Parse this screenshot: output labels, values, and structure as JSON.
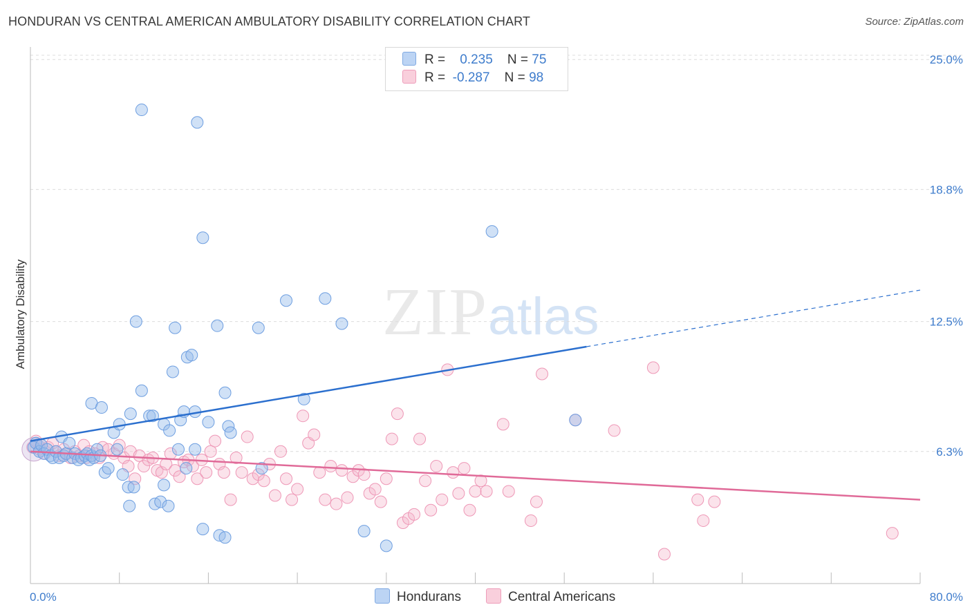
{
  "header": {
    "title": "HONDURAN VS CENTRAL AMERICAN AMBULATORY DISABILITY CORRELATION CHART",
    "source": "Source: ZipAtlas.com"
  },
  "watermark": {
    "zip": "ZIP",
    "atlas": "atlas"
  },
  "legend": {
    "rows": [
      {
        "r_label": "R =",
        "r_value": "0.235",
        "n_label": "N =",
        "n_value": "75",
        "color": "#a9c8f0"
      },
      {
        "r_label": "R =",
        "r_value": "-0.287",
        "n_label": "N =",
        "n_value": "98",
        "color": "#f6b8cc"
      }
    ]
  },
  "bottom_legend": {
    "hondurans": "Hondurans",
    "central_americans": "Central Americans"
  },
  "axes": {
    "y_title": "Ambulatory Disability",
    "x_min_label": "0.0%",
    "x_max_label": "80.0%",
    "y_tick_labels": [
      "6.3%",
      "12.5%",
      "18.8%",
      "25.0%"
    ]
  },
  "chart_data": {
    "type": "scatter",
    "title": "HONDURAN VS CENTRAL AMERICAN AMBULATORY DISABILITY CORRELATION CHART",
    "xlabel": "",
    "ylabel": "Ambulatory Disability",
    "xlim": [
      0,
      80
    ],
    "ylim": [
      0,
      25.6
    ],
    "y_ticks": [
      6.3,
      12.5,
      18.8,
      25.0
    ],
    "grid": true,
    "colors": {
      "hondurans": "#6a9fe0",
      "central_americans": "#f08aad",
      "hondurans_line": "#2b6fce",
      "central_americans_line": "#e06a98"
    },
    "series": [
      {
        "name": "Hondurans",
        "r": 0.235,
        "n": 75,
        "trend": {
          "x0": 0,
          "y0": 6.8,
          "x1": 50,
          "y1": 11.3,
          "x_dash_end": 80,
          "y_dash_end": 14.0
        },
        "points": [
          [
            0.3,
            6.5
          ],
          [
            0.5,
            6.7
          ],
          [
            0.8,
            6.3
          ],
          [
            1.0,
            6.6
          ],
          [
            1.2,
            6.2
          ],
          [
            1.5,
            6.4
          ],
          [
            1.8,
            6.1
          ],
          [
            2.0,
            6.0
          ],
          [
            2.3,
            6.3
          ],
          [
            2.6,
            6.0
          ],
          [
            2.8,
            7.0
          ],
          [
            3.0,
            6.1
          ],
          [
            3.2,
            6.2
          ],
          [
            3.5,
            6.7
          ],
          [
            3.8,
            6.0
          ],
          [
            4.0,
            6.2
          ],
          [
            4.3,
            5.9
          ],
          [
            4.6,
            6.0
          ],
          [
            4.9,
            6.1
          ],
          [
            5.1,
            6.2
          ],
          [
            5.3,
            5.9
          ],
          [
            5.5,
            6.1
          ],
          [
            5.7,
            6.0
          ],
          [
            6.0,
            6.4
          ],
          [
            6.3,
            6.1
          ],
          [
            5.5,
            8.6
          ],
          [
            6.4,
            8.4
          ],
          [
            6.7,
            5.3
          ],
          [
            7.0,
            5.5
          ],
          [
            7.5,
            7.2
          ],
          [
            7.8,
            6.4
          ],
          [
            8.0,
            7.6
          ],
          [
            8.3,
            5.2
          ],
          [
            8.8,
            4.6
          ],
          [
            8.9,
            3.7
          ],
          [
            9.0,
            8.1
          ],
          [
            9.3,
            4.6
          ],
          [
            9.5,
            12.5
          ],
          [
            10.0,
            9.2
          ],
          [
            10.7,
            8.0
          ],
          [
            11.0,
            8.0
          ],
          [
            11.2,
            3.8
          ],
          [
            10.0,
            22.6
          ],
          [
            11.7,
            3.9
          ],
          [
            12.0,
            4.7
          ],
          [
            12.4,
            3.7
          ],
          [
            12.0,
            7.6
          ],
          [
            12.5,
            7.3
          ],
          [
            12.8,
            10.1
          ],
          [
            13.0,
            12.2
          ],
          [
            13.3,
            6.4
          ],
          [
            13.5,
            7.8
          ],
          [
            13.8,
            8.2
          ],
          [
            14.0,
            5.5
          ],
          [
            14.1,
            10.8
          ],
          [
            14.5,
            10.9
          ],
          [
            14.8,
            6.4
          ],
          [
            14.8,
            8.2
          ],
          [
            15.5,
            16.5
          ],
          [
            15.0,
            22.0
          ],
          [
            15.5,
            2.6
          ],
          [
            16.0,
            7.7
          ],
          [
            16.8,
            12.3
          ],
          [
            17.0,
            2.3
          ],
          [
            17.5,
            2.2
          ],
          [
            17.5,
            9.1
          ],
          [
            17.8,
            7.5
          ],
          [
            18.0,
            7.2
          ],
          [
            20.5,
            12.2
          ],
          [
            20.8,
            5.5
          ],
          [
            23.0,
            13.5
          ],
          [
            24.6,
            8.8
          ],
          [
            26.5,
            13.6
          ],
          [
            28.0,
            12.4
          ],
          [
            30.0,
            2.5
          ],
          [
            32.0,
            1.8
          ],
          [
            41.5,
            16.8
          ],
          [
            49.0,
            7.8
          ]
        ]
      },
      {
        "name": "Central Americans",
        "r": -0.287,
        "n": 98,
        "trend": {
          "x0": 0,
          "y0": 6.3,
          "x1": 80,
          "y1": 4.0
        },
        "points": [
          [
            0.2,
            6.5
          ],
          [
            0.5,
            6.8
          ],
          [
            0.8,
            6.4
          ],
          [
            1.0,
            6.6
          ],
          [
            1.3,
            6.2
          ],
          [
            1.6,
            6.5
          ],
          [
            2.0,
            6.7
          ],
          [
            2.3,
            6.3
          ],
          [
            2.6,
            6.1
          ],
          [
            3.0,
            6.4
          ],
          [
            3.3,
            6.2
          ],
          [
            3.6,
            6.0
          ],
          [
            4.0,
            6.3
          ],
          [
            4.4,
            6.1
          ],
          [
            4.8,
            6.6
          ],
          [
            5.0,
            6.0
          ],
          [
            5.3,
            6.3
          ],
          [
            5.8,
            6.2
          ],
          [
            6.2,
            6.0
          ],
          [
            6.5,
            6.5
          ],
          [
            7.0,
            6.4
          ],
          [
            7.5,
            6.2
          ],
          [
            8.0,
            6.6
          ],
          [
            8.4,
            6.0
          ],
          [
            8.8,
            5.6
          ],
          [
            9.0,
            6.3
          ],
          [
            9.4,
            5.0
          ],
          [
            9.8,
            6.1
          ],
          [
            10.2,
            5.6
          ],
          [
            10.6,
            5.9
          ],
          [
            11.0,
            6.0
          ],
          [
            11.4,
            5.4
          ],
          [
            11.8,
            5.3
          ],
          [
            12.2,
            5.7
          ],
          [
            12.6,
            6.2
          ],
          [
            13.0,
            5.4
          ],
          [
            13.4,
            5.1
          ],
          [
            13.8,
            5.8
          ],
          [
            14.2,
            5.9
          ],
          [
            14.6,
            5.6
          ],
          [
            15.0,
            5.0
          ],
          [
            15.4,
            5.9
          ],
          [
            15.8,
            5.3
          ],
          [
            16.2,
            6.3
          ],
          [
            16.6,
            6.8
          ],
          [
            17.0,
            5.7
          ],
          [
            17.4,
            5.3
          ],
          [
            18.0,
            4.0
          ],
          [
            18.5,
            6.0
          ],
          [
            19.0,
            5.3
          ],
          [
            19.5,
            7.0
          ],
          [
            20.0,
            5.0
          ],
          [
            20.5,
            5.2
          ],
          [
            21.0,
            4.9
          ],
          [
            21.5,
            5.7
          ],
          [
            22.0,
            4.2
          ],
          [
            22.5,
            6.3
          ],
          [
            23.0,
            5.0
          ],
          [
            23.5,
            4.0
          ],
          [
            24.0,
            4.5
          ],
          [
            24.5,
            8.0
          ],
          [
            25.0,
            6.7
          ],
          [
            25.5,
            7.1
          ],
          [
            26.0,
            5.3
          ],
          [
            26.5,
            4.0
          ],
          [
            27.0,
            5.6
          ],
          [
            27.5,
            3.8
          ],
          [
            28.0,
            5.4
          ],
          [
            28.5,
            4.1
          ],
          [
            29.0,
            5.1
          ],
          [
            29.5,
            5.4
          ],
          [
            30.0,
            5.2
          ],
          [
            30.5,
            4.3
          ],
          [
            31.0,
            4.5
          ],
          [
            31.5,
            3.9
          ],
          [
            32.0,
            5.0
          ],
          [
            32.5,
            6.9
          ],
          [
            33.0,
            8.1
          ],
          [
            33.5,
            2.9
          ],
          [
            34.0,
            3.1
          ],
          [
            34.5,
            3.3
          ],
          [
            35.0,
            6.9
          ],
          [
            35.5,
            4.9
          ],
          [
            36.0,
            3.5
          ],
          [
            36.5,
            5.6
          ],
          [
            37.0,
            4.0
          ],
          [
            37.5,
            10.2
          ],
          [
            38.0,
            5.3
          ],
          [
            38.5,
            4.3
          ],
          [
            39.0,
            5.5
          ],
          [
            39.5,
            3.5
          ],
          [
            40.0,
            4.4
          ],
          [
            40.5,
            4.9
          ],
          [
            41.0,
            4.4
          ],
          [
            42.5,
            7.6
          ],
          [
            43.0,
            4.4
          ],
          [
            45.0,
            3.0
          ],
          [
            45.5,
            3.9
          ],
          [
            46.0,
            10.0
          ],
          [
            49.0,
            7.8
          ],
          [
            52.5,
            7.3
          ],
          [
            56.0,
            10.3
          ],
          [
            57.0,
            1.4
          ],
          [
            60.0,
            4.0
          ],
          [
            60.5,
            3.0
          ],
          [
            61.5,
            3.9
          ],
          [
            77.5,
            2.4
          ]
        ]
      }
    ]
  }
}
